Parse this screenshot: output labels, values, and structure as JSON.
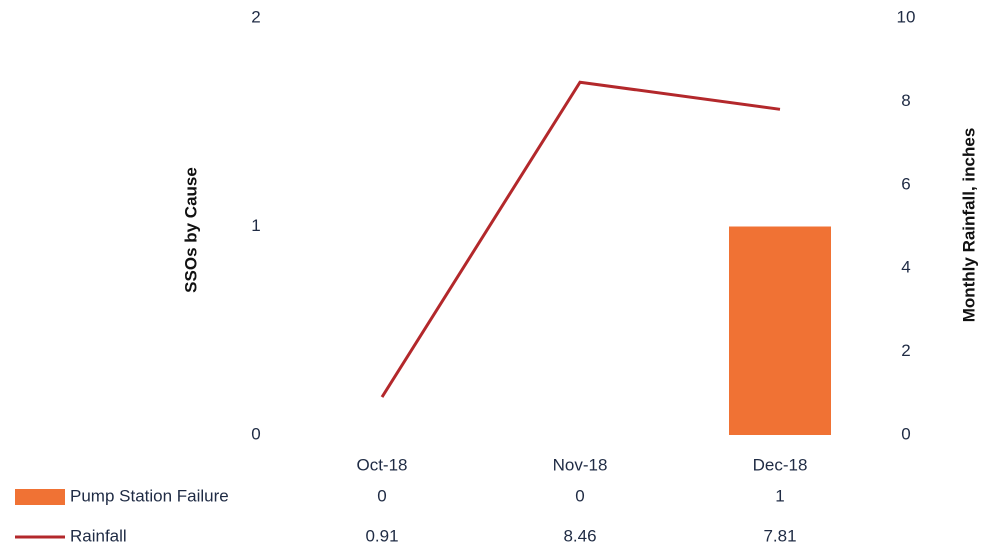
{
  "chart_data": {
    "type": "bar",
    "categories": [
      "Oct-18",
      "Nov-18",
      "Dec-18"
    ],
    "series": [
      {
        "name": "Pump Station Failure",
        "type": "bar",
        "color": "#f07234",
        "values": [
          0,
          0,
          1
        ]
      },
      {
        "name": "Rainfall",
        "type": "line",
        "color": "#b3282b",
        "values": [
          0.91,
          8.46,
          7.81
        ],
        "axis": "y2"
      }
    ],
    "ylabel": "SSOs by Cause",
    "y2label": "Monthly Rainfall, inches",
    "ylim": [
      0,
      2
    ],
    "yticks": [
      0,
      1,
      2
    ],
    "y2lim": [
      0,
      10
    ],
    "y2ticks": [
      0,
      2,
      4,
      6,
      8,
      10
    ],
    "grid": false,
    "legend": "bottom"
  }
}
